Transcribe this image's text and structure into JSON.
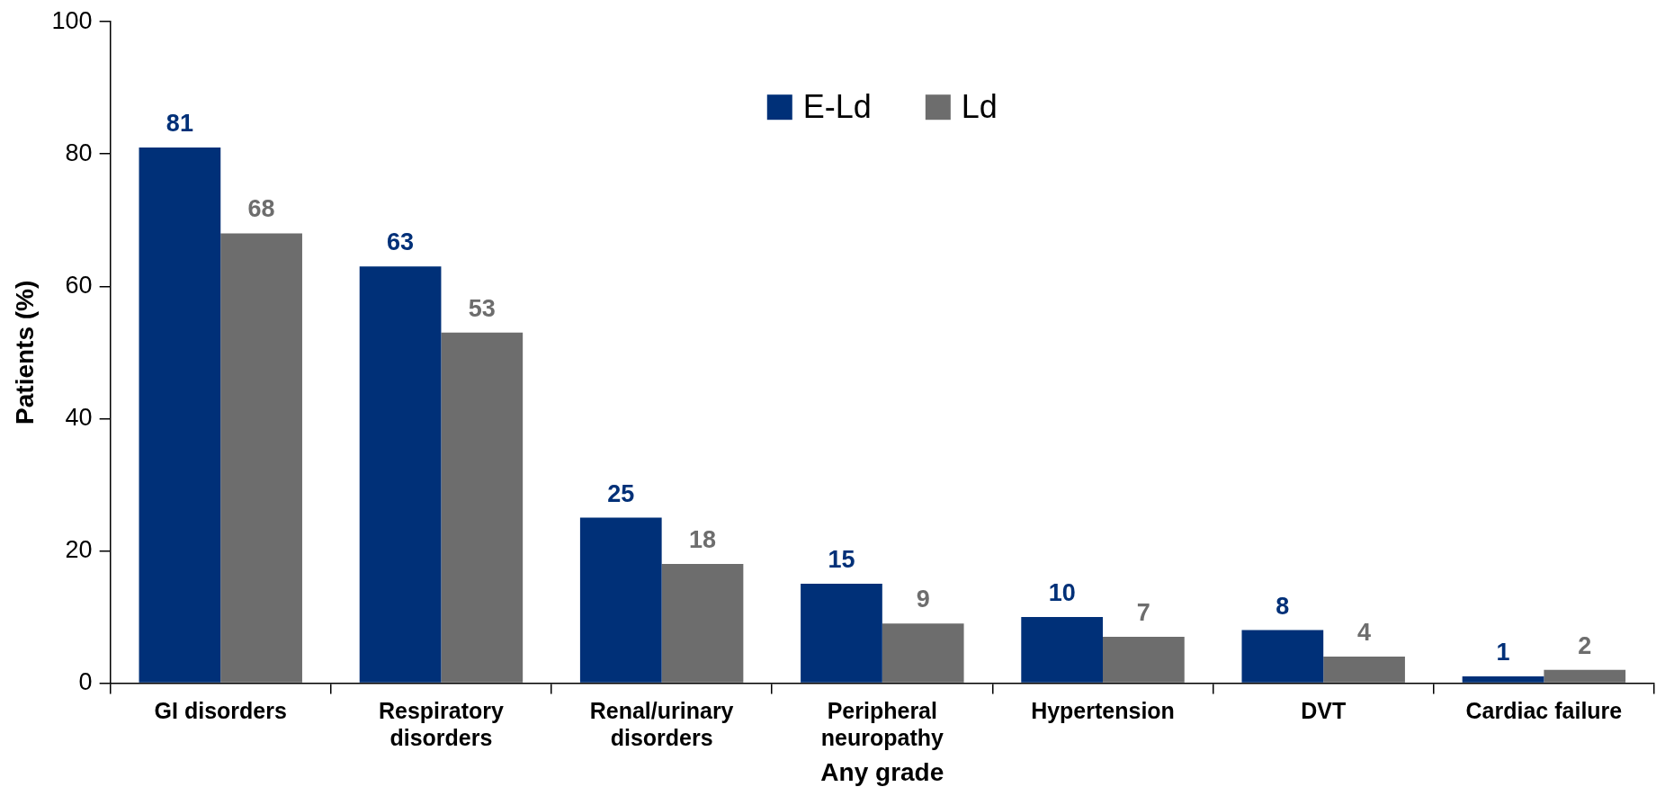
{
  "chart_data": {
    "type": "bar",
    "xlabel": "Any grade",
    "ylabel": "Patients (%)",
    "categories": [
      "GI disorders",
      "Respiratory disorders",
      "Renal/urinary disorders",
      "Peripheral neuropathy",
      "Hypertension",
      "DVT",
      "Cardiac failure"
    ],
    "series": [
      {
        "name": "E-Ld",
        "color": "#003078",
        "values": [
          81,
          63,
          25,
          15,
          10,
          8,
          1
        ]
      },
      {
        "name": "Ld",
        "color": "#6d6d6d",
        "values": [
          68,
          53,
          18,
          9,
          7,
          4,
          2
        ]
      }
    ],
    "ylim": [
      0,
      100
    ],
    "yticks": [
      0,
      20,
      40,
      60,
      80,
      100
    ],
    "grid": false,
    "legend": "top",
    "data_labels": true
  }
}
